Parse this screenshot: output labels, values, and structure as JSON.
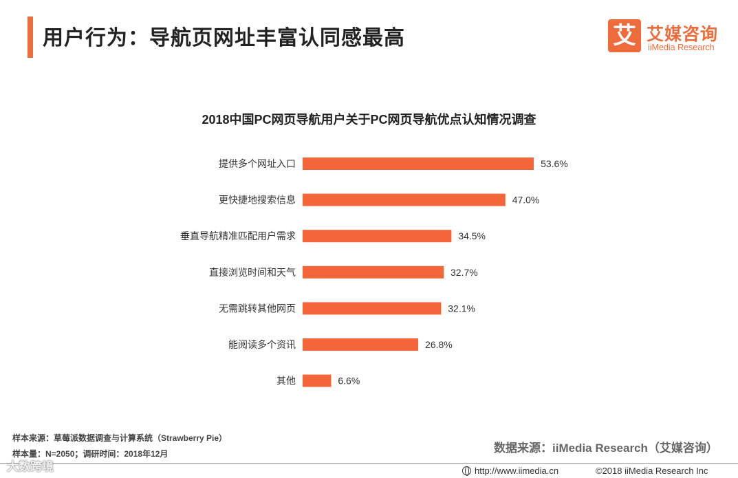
{
  "header": {
    "title": "用户行为：导航页网址丰富认同感最高",
    "logo_cn": "艾媒咨询",
    "logo_en": "iiMedia Research",
    "logo_mark": "艾"
  },
  "chart_data": {
    "type": "bar",
    "orientation": "horizontal",
    "title": "2018中国PC网页导航用户关于PC网页导航优点认知情况调查",
    "categories": [
      "提供多个网址入口",
      "更快捷地搜索信息",
      "垂直导航精准匹配用户需求",
      "直接浏览时间和天气",
      "无需跳转其他网页",
      "能阅读多个资讯",
      "其他"
    ],
    "values": [
      53.6,
      47.0,
      34.5,
      32.7,
      32.1,
      26.8,
      6.6
    ],
    "value_labels": [
      "53.6%",
      "47.0%",
      "34.5%",
      "32.7%",
      "32.1%",
      "26.8%",
      "6.6%"
    ],
    "unit": "%",
    "xlim": [
      0,
      60
    ],
    "bar_color": "#f2663a"
  },
  "footer": {
    "sample_source": "样本来源：草莓派数据调查与计算系统（Strawberry Pie）",
    "sample_size": "样本量：N=2050；调研时间：2018年12月",
    "data_source": "数据来源：iiMedia Research（艾媒咨询）",
    "url": "http://www.iimedia.cn",
    "copyright": "©2018  iiMedia Research  Inc",
    "watermark": "大数跨境"
  }
}
